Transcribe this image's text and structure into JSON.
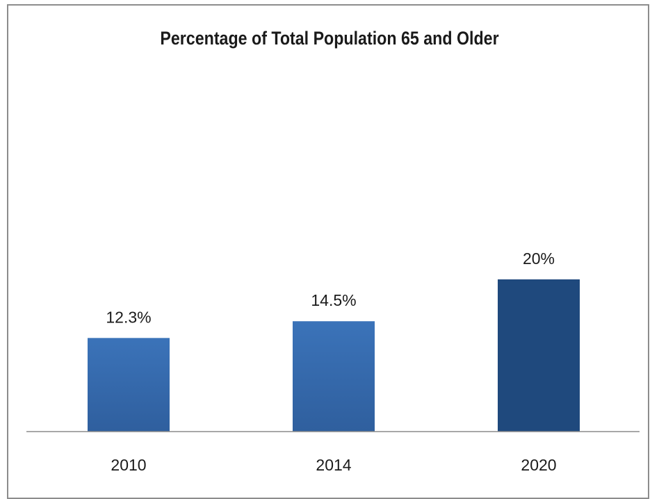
{
  "chart_data": {
    "type": "bar",
    "title": "Percentage of Total Population 65 and Older",
    "categories": [
      "2010",
      "2014",
      "2020"
    ],
    "values": [
      12.3,
      14.5,
      20
    ],
    "data_labels": [
      "12.3%",
      "14.5%",
      "20%"
    ],
    "xlabel": "",
    "ylabel": "",
    "ylim": [
      0,
      26.8
    ],
    "grid": false,
    "legend": "none",
    "colors": [
      "#3b73b9",
      "#3b73b9",
      "#1f497d"
    ],
    "colors_bottom": [
      "#2f5f9e",
      "#2f5f9e",
      "#1f497d"
    ]
  }
}
